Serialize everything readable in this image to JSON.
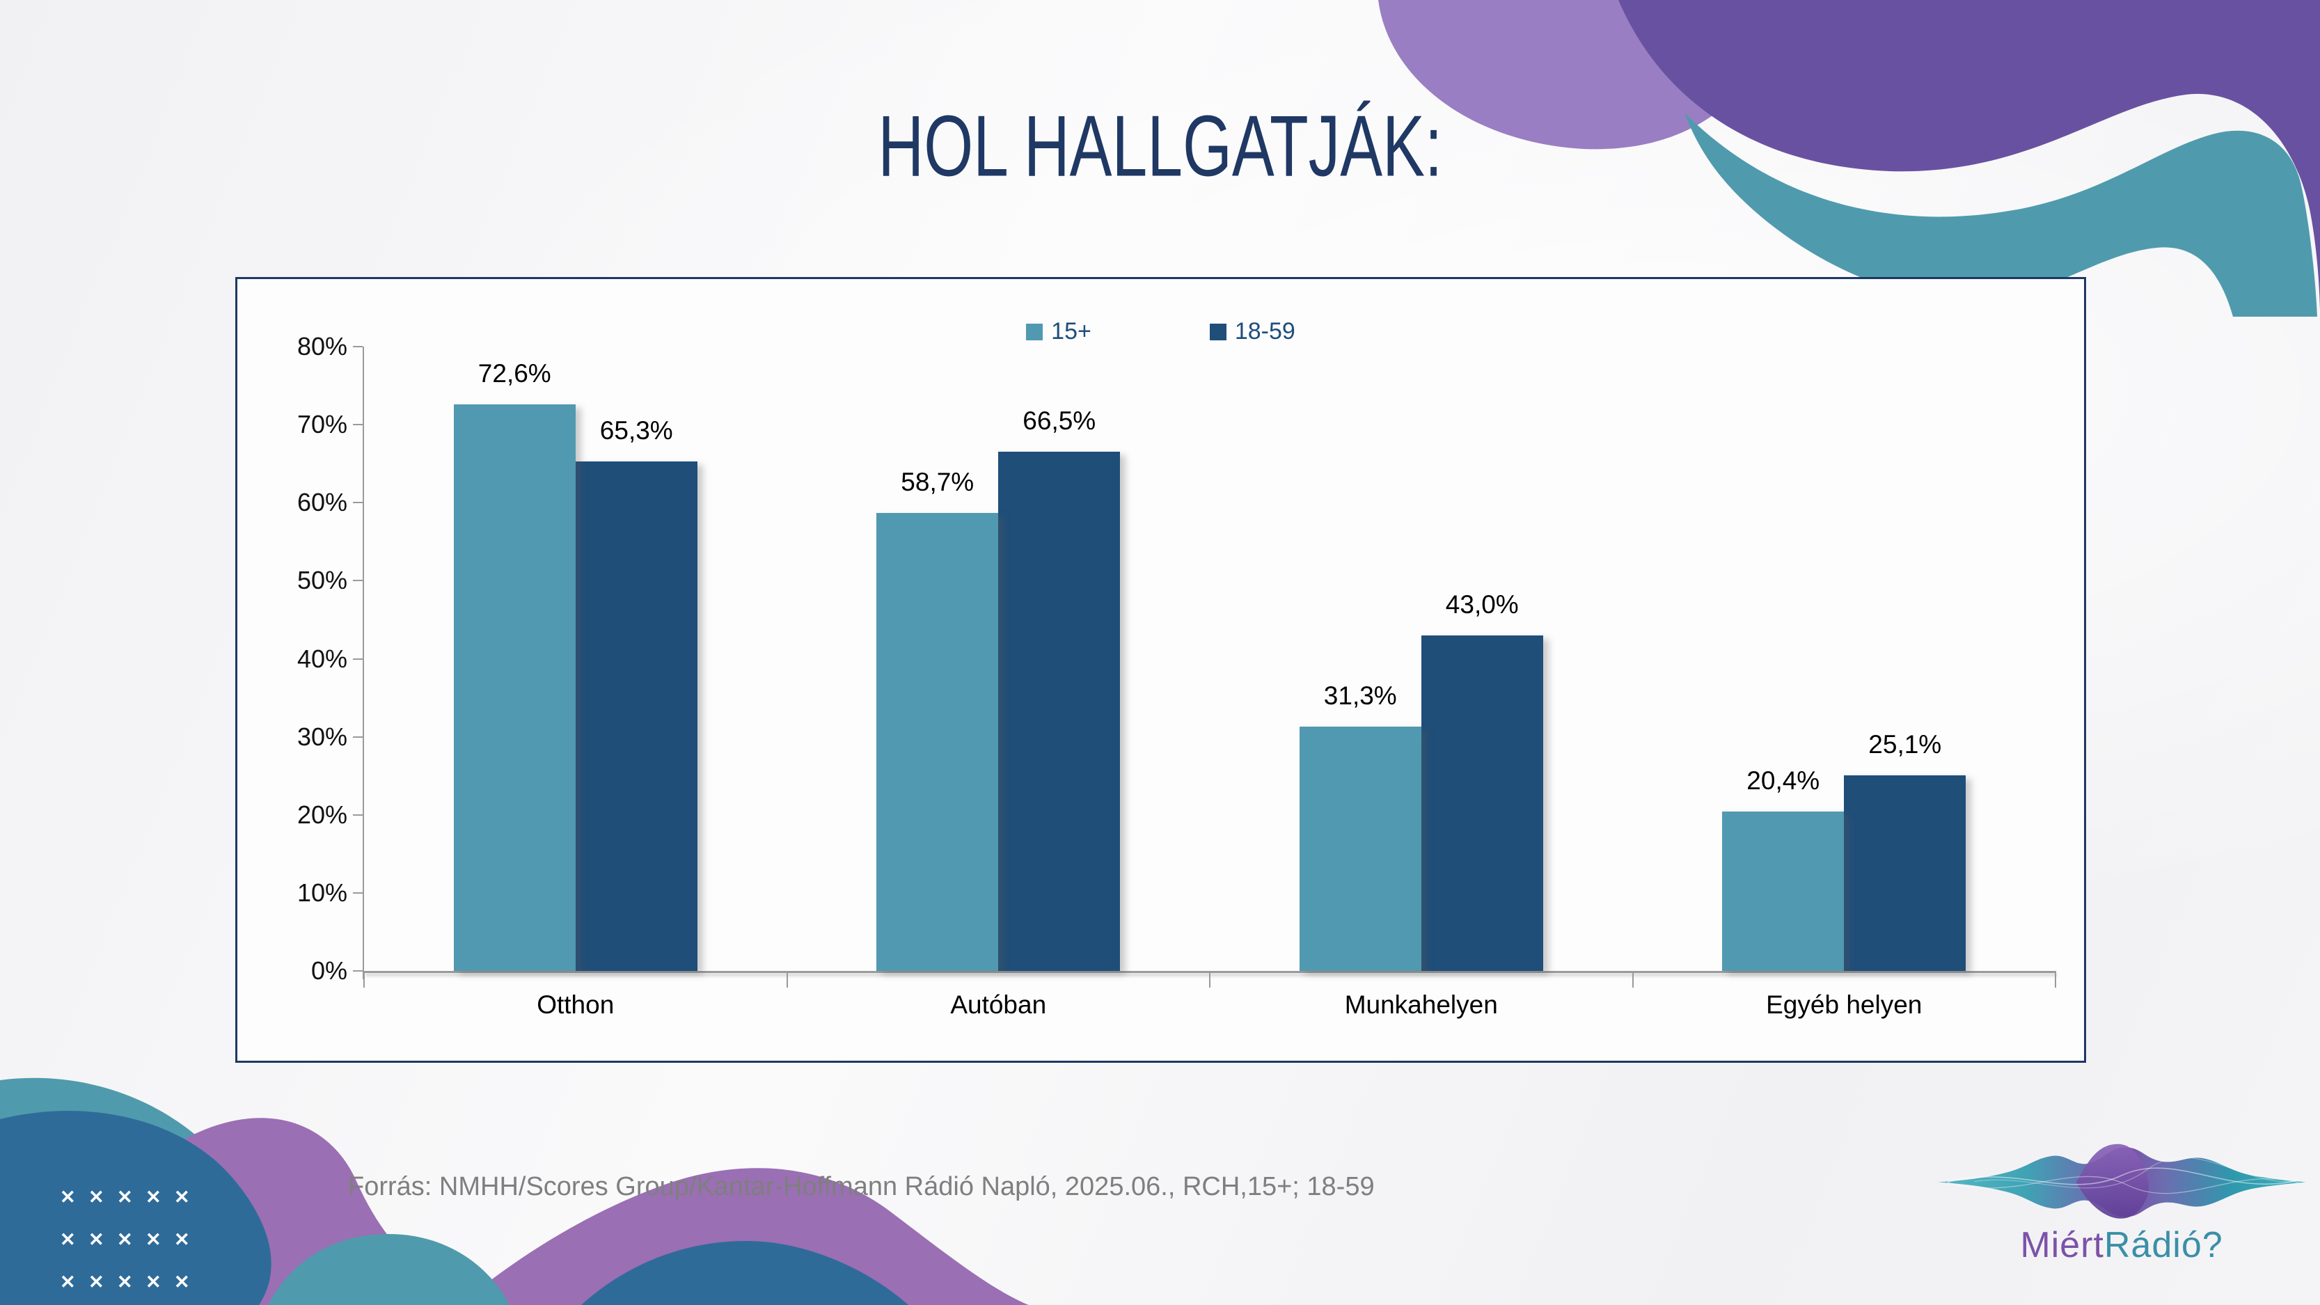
{
  "slide": {
    "background_color": "#F2F2F4",
    "frame_border_color": "#1F3864",
    "axis_color": "#9A9A9A"
  },
  "chart_data": {
    "type": "bar",
    "title": "HOL HALLGATJÁK:",
    "categories": [
      "Otthon",
      "Autóban",
      "Munkahelyen",
      "Egyéb helyen"
    ],
    "series": [
      {
        "name": "15+",
        "color": "#5199B0",
        "values": [
          72.6,
          58.7,
          31.3,
          20.4
        ],
        "value_labels": [
          "72,6%",
          "58,7%",
          "31,3%",
          "20,4%"
        ]
      },
      {
        "name": "18-59",
        "color": "#1F4E79",
        "values": [
          65.3,
          66.5,
          43.0,
          25.1
        ],
        "value_labels": [
          "65,3%",
          "66,5%",
          "43,0%",
          "25,1%"
        ]
      }
    ],
    "xlabel": "",
    "ylabel": "",
    "ylim": [
      0,
      80
    ],
    "ytick_labels": [
      "80%",
      "70%",
      "60%",
      "50%",
      "40%",
      "30%",
      "20%",
      "10%",
      "0%"
    ],
    "grid": false,
    "legend_position": "top-center"
  },
  "footer": {
    "source": "Forrás: NMHH/Scores Group/Kantar-Hoffmann Rádió Napló, 2025.06., RCH,15+; 18-59"
  },
  "logo": {
    "text_primary": "Miért",
    "text_secondary": "Rádió?"
  },
  "decor": {
    "cross_glyph": "✕",
    "cross_rows": 3,
    "cross_cols": 5
  }
}
